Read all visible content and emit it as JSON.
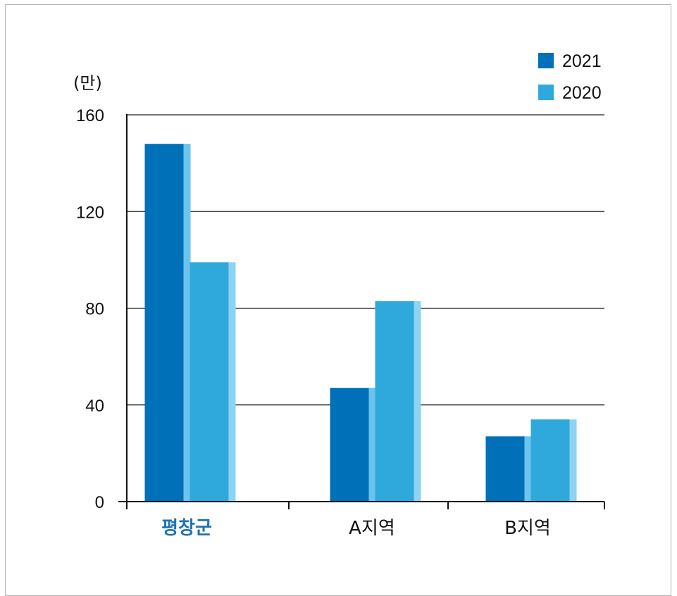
{
  "chart_data": {
    "type": "bar",
    "unit_label": "(만)",
    "categories": [
      "평창군",
      "A지역",
      "B지역"
    ],
    "highlight_category": "평창군",
    "series": [
      {
        "name": "2021",
        "values": [
          148,
          47,
          27
        ],
        "color": "#0070b8",
        "side_color": "#6cc4ee"
      },
      {
        "name": "2020",
        "values": [
          99,
          83,
          34
        ],
        "color": "#2fa9dc",
        "side_color": "#8fd3f4"
      }
    ],
    "ylim": [
      0,
      160
    ],
    "yticks": [
      "0",
      "40",
      "80",
      "120",
      "160"
    ],
    "grid": true,
    "legend_position": "top-right",
    "highlight_color": "#1f73b7"
  }
}
